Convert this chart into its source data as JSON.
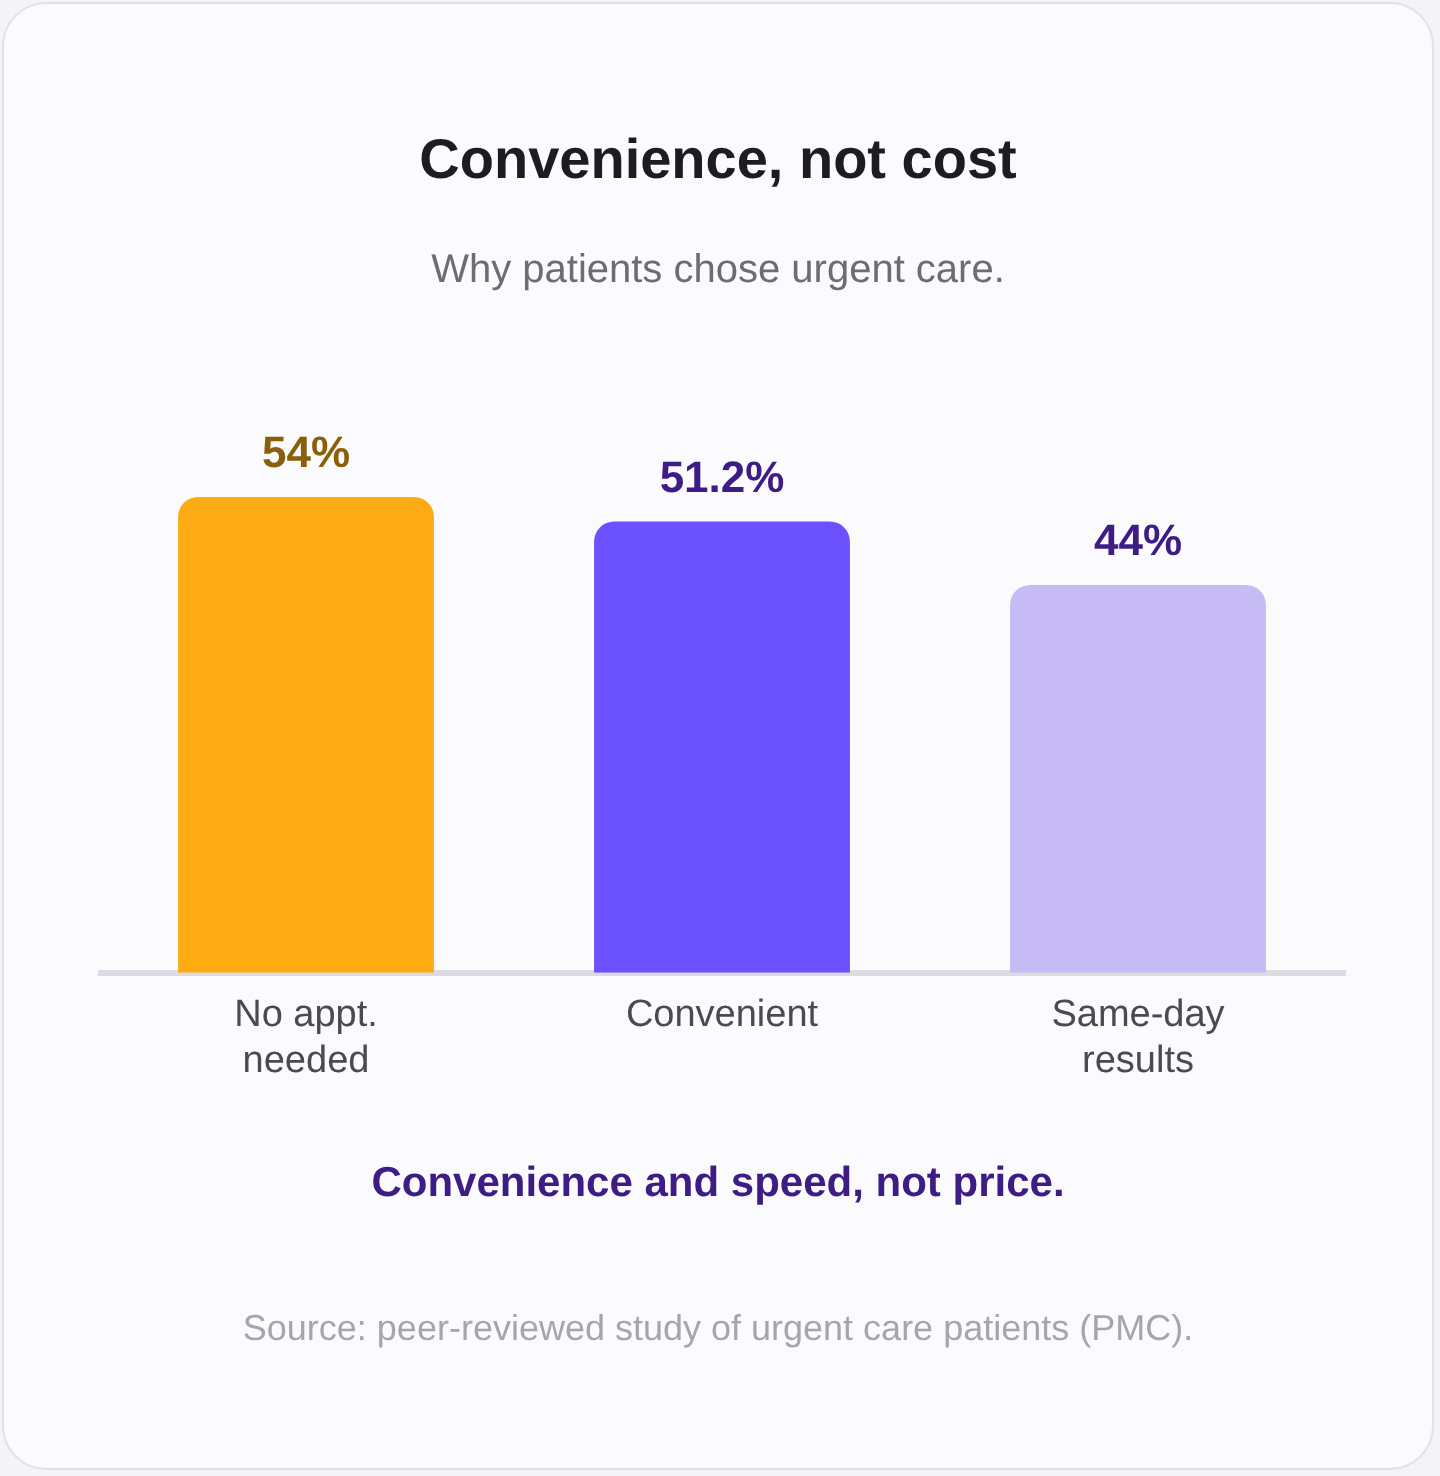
{
  "chart_data": {
    "type": "bar",
    "title": "Convenience, not cost",
    "subtitle": "Why patients chose urgent care.",
    "categories": [
      "No appt. needed",
      "Convenient",
      "Same-day results"
    ],
    "values": [
      54,
      51.2,
      44
    ],
    "colors": [
      "#fcac12",
      "#6c52ff",
      "#c6bbf5"
    ],
    "value_labels": [
      "54%",
      "51.2%",
      "44%"
    ],
    "grid": false,
    "legend": false,
    "annotations": [
      "Convenience and speed, not price.",
      "Source: peer-reviewed study of urgent care patients (PMC)."
    ]
  }
}
